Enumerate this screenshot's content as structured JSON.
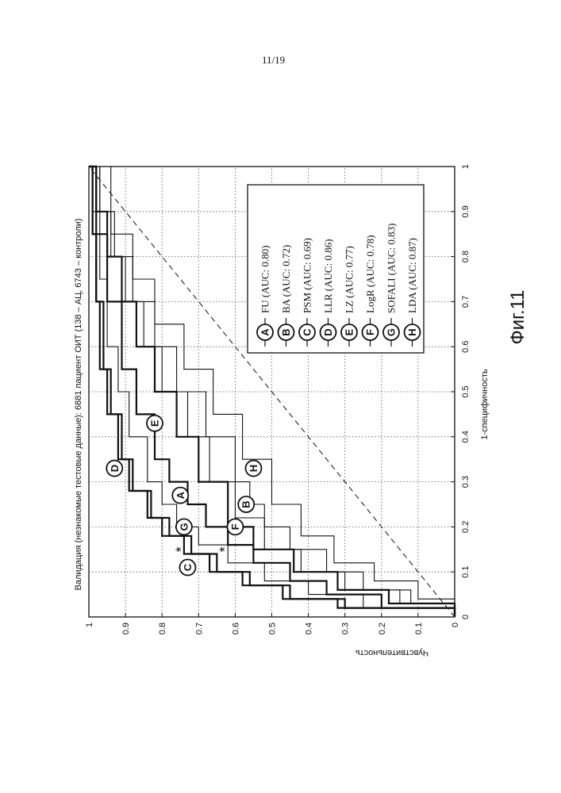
{
  "page": {
    "number": "11/19"
  },
  "chart_data": {
    "type": "line",
    "title": "Валидация (незнакомые тестовые данные): 6881 пациент ОИТ (138 – АЦ, 6743 – контроли)",
    "xlabel": "1-специфичность",
    "ylabel": "Чувствительность",
    "figure_label": "Фиг.11",
    "xlim": [
      0,
      1
    ],
    "ylim": [
      0,
      1
    ],
    "xticks": [
      "0",
      "0.1",
      "0.2",
      "0.3",
      "0.4",
      "0.5",
      "0.6",
      "0.7",
      "0.8",
      "0.9",
      "1"
    ],
    "yticks": [
      "0",
      "0.1",
      "0.2",
      "0.3",
      "0.4",
      "0.5",
      "0.6",
      "0.7",
      "0.8",
      "0.9",
      "1"
    ],
    "grid": true,
    "legend_position": "bottom-right",
    "series": [
      {
        "letter": "A",
        "name": "FU (AUC: 0.80)",
        "x": [
          0,
          0.02,
          0.05,
          0.08,
          0.12,
          0.16,
          0.2,
          0.25,
          0.3,
          0.35,
          0.45,
          0.55,
          0.7,
          0.85,
          1
        ],
        "y": [
          0,
          0.2,
          0.35,
          0.45,
          0.55,
          0.62,
          0.68,
          0.73,
          0.78,
          0.82,
          0.87,
          0.91,
          0.95,
          0.98,
          1
        ]
      },
      {
        "letter": "B",
        "name": "BA (AUC: 0.72)",
        "x": [
          0,
          0.03,
          0.06,
          0.1,
          0.15,
          0.2,
          0.25,
          0.3,
          0.4,
          0.5,
          0.6,
          0.7,
          0.8,
          0.9,
          1
        ],
        "y": [
          0,
          0.12,
          0.25,
          0.35,
          0.45,
          0.52,
          0.56,
          0.6,
          0.68,
          0.76,
          0.82,
          0.88,
          0.93,
          0.97,
          1
        ]
      },
      {
        "letter": "C",
        "name": "PSM (AUC: 0.69)",
        "x": [
          0,
          0.04,
          0.08,
          0.12,
          0.18,
          0.25,
          0.35,
          0.45,
          0.55,
          0.65,
          0.75,
          0.85,
          1
        ],
        "y": [
          0,
          0.1,
          0.22,
          0.33,
          0.42,
          0.5,
          0.58,
          0.66,
          0.74,
          0.82,
          0.88,
          0.94,
          1
        ]
      },
      {
        "letter": "D",
        "name": "LLR (AUC: 0.86)",
        "x": [
          0,
          0.02,
          0.04,
          0.07,
          0.1,
          0.14,
          0.18,
          0.22,
          0.28,
          0.35,
          0.45,
          0.55,
          0.7,
          0.85,
          1
        ],
        "y": [
          0,
          0.3,
          0.45,
          0.56,
          0.65,
          0.72,
          0.78,
          0.83,
          0.88,
          0.91,
          0.94,
          0.96,
          0.98,
          0.99,
          1
        ]
      },
      {
        "letter": "E",
        "name": "LZ (AUC: 0.77)",
        "x": [
          0,
          0.03,
          0.06,
          0.1,
          0.15,
          0.22,
          0.3,
          0.4,
          0.5,
          0.6,
          0.7,
          0.8,
          0.9,
          1
        ],
        "y": [
          0,
          0.15,
          0.3,
          0.42,
          0.52,
          0.6,
          0.67,
          0.73,
          0.8,
          0.85,
          0.9,
          0.94,
          0.97,
          1
        ]
      },
      {
        "letter": "F",
        "name": "LogR (AUC: 0.78)",
        "x": [
          0,
          0.03,
          0.06,
          0.1,
          0.15,
          0.2,
          0.3,
          0.4,
          0.5,
          0.6,
          0.7,
          0.8,
          0.9,
          1
        ],
        "y": [
          0,
          0.18,
          0.32,
          0.44,
          0.55,
          0.62,
          0.7,
          0.76,
          0.82,
          0.87,
          0.91,
          0.95,
          0.98,
          1
        ]
      },
      {
        "letter": "G",
        "name": "SOFALI (AUC: 0.83)",
        "x": [
          0,
          0.02,
          0.05,
          0.08,
          0.12,
          0.16,
          0.2,
          0.25,
          0.3,
          0.4,
          0.5,
          0.6,
          0.75,
          0.9,
          1
        ],
        "y": [
          0,
          0.25,
          0.4,
          0.52,
          0.62,
          0.7,
          0.76,
          0.8,
          0.84,
          0.89,
          0.92,
          0.95,
          0.97,
          0.99,
          1
        ]
      },
      {
        "letter": "H",
        "name": "LDA (AUC: 0.87)",
        "x": [
          0,
          0.02,
          0.04,
          0.07,
          0.1,
          0.14,
          0.18,
          0.22,
          0.28,
          0.35,
          0.45,
          0.55,
          0.7,
          0.85,
          1
        ],
        "y": [
          0,
          0.32,
          0.47,
          0.58,
          0.67,
          0.74,
          0.8,
          0.84,
          0.89,
          0.92,
          0.95,
          0.97,
          0.98,
          0.99,
          1
        ]
      },
      {
        "letter": "",
        "name": "",
        "x": [
          0,
          0.25,
          0.5,
          0.75,
          1
        ],
        "y": [
          0,
          0.25,
          0.5,
          0.75,
          1
        ],
        "style": "dashed"
      }
    ],
    "markers": [
      {
        "symbol": "*",
        "x": 0.15,
        "y": 0.63
      },
      {
        "symbol": "*",
        "x": 0.15,
        "y": 0.75
      }
    ],
    "annotations": [
      {
        "letter": "D",
        "x": 0.33,
        "y": 0.93
      },
      {
        "letter": "E",
        "x": 0.43,
        "y": 0.82
      },
      {
        "letter": "A",
        "x": 0.27,
        "y": 0.75
      },
      {
        "letter": "G",
        "x": 0.2,
        "y": 0.74
      },
      {
        "letter": "C",
        "x": 0.11,
        "y": 0.73
      },
      {
        "letter": "F",
        "x": 0.2,
        "y": 0.6
      },
      {
        "letter": "B",
        "x": 0.25,
        "y": 0.57
      },
      {
        "letter": "H",
        "x": 0.33,
        "y": 0.55
      }
    ]
  }
}
